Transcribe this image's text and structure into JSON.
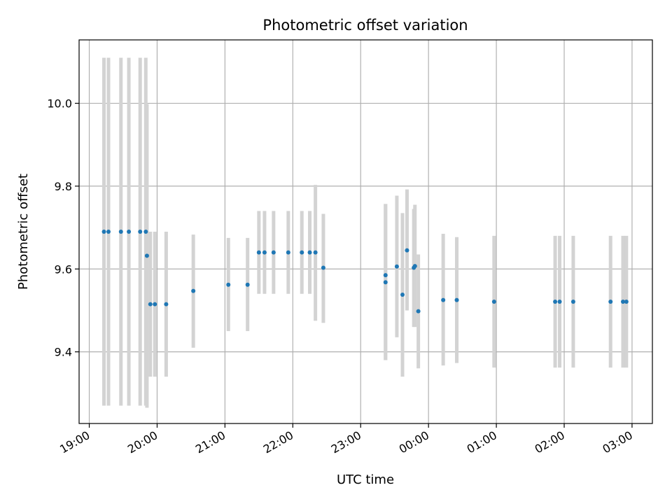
{
  "chart_data": {
    "type": "scatter",
    "title": "Photometric offset variation",
    "xlabel": "UTC time",
    "ylabel": "Photometric offset",
    "x_ticks": [
      "19:00",
      "20:00",
      "21:00",
      "22:00",
      "23:00",
      "00:00",
      "01:00",
      "02:00",
      "03:00"
    ],
    "y_ticks": [
      "9.4",
      "9.6",
      "9.8",
      "10.0"
    ],
    "x_tick_hours": [
      19,
      20,
      21,
      22,
      23,
      24,
      25,
      26,
      27
    ],
    "y_tick_values": [
      9.4,
      9.6,
      9.8,
      10.0
    ],
    "xlim_hours": [
      18.85,
      27.3
    ],
    "ylim": [
      9.227,
      10.153
    ],
    "grid": true,
    "marker_color": "#1f77b4",
    "errorbar_color": "#d3d3d3",
    "points": [
      {
        "x": "19:13",
        "y": 9.69,
        "lo": 9.27,
        "hi": 10.11
      },
      {
        "x": "19:17",
        "y": 9.69,
        "lo": 9.27,
        "hi": 10.11
      },
      {
        "x": "19:28",
        "y": 9.69,
        "lo": 9.27,
        "hi": 10.11
      },
      {
        "x": "19:35",
        "y": 9.69,
        "lo": 9.27,
        "hi": 10.11
      },
      {
        "x": "19:45",
        "y": 9.69,
        "lo": 9.27,
        "hi": 10.11
      },
      {
        "x": "19:50",
        "y": 9.69,
        "lo": 9.27,
        "hi": 10.11
      },
      {
        "x": "19:51",
        "y": 9.632,
        "lo": 9.265,
        "hi": 9.998
      },
      {
        "x": "19:54",
        "y": 9.515,
        "lo": 9.34,
        "hi": 9.69
      },
      {
        "x": "19:58",
        "y": 9.515,
        "lo": 9.34,
        "hi": 9.69
      },
      {
        "x": "20:08",
        "y": 9.515,
        "lo": 9.34,
        "hi": 9.69
      },
      {
        "x": "20:32",
        "y": 9.547,
        "lo": 9.41,
        "hi": 9.683
      },
      {
        "x": "21:03",
        "y": 9.562,
        "lo": 9.45,
        "hi": 9.675
      },
      {
        "x": "21:20",
        "y": 9.562,
        "lo": 9.45,
        "hi": 9.675
      },
      {
        "x": "21:30",
        "y": 9.64,
        "lo": 9.54,
        "hi": 9.74
      },
      {
        "x": "21:35",
        "y": 9.64,
        "lo": 9.54,
        "hi": 9.74
      },
      {
        "x": "21:43",
        "y": 9.64,
        "lo": 9.54,
        "hi": 9.74
      },
      {
        "x": "21:56",
        "y": 9.64,
        "lo": 9.54,
        "hi": 9.74
      },
      {
        "x": "22:08",
        "y": 9.64,
        "lo": 9.54,
        "hi": 9.74
      },
      {
        "x": "22:15",
        "y": 9.64,
        "lo": 9.54,
        "hi": 9.74
      },
      {
        "x": "22:20",
        "y": 9.64,
        "lo": 9.475,
        "hi": 9.803
      },
      {
        "x": "22:27",
        "y": 9.603,
        "lo": 9.47,
        "hi": 9.733
      },
      {
        "x": "23:22",
        "y": 9.585,
        "lo": 9.38,
        "hi": 9.757
      },
      {
        "x": "23:22",
        "y": 9.568,
        "lo": 9.38,
        "hi": 9.757
      },
      {
        "x": "23:32",
        "y": 9.606,
        "lo": 9.435,
        "hi": 9.777
      },
      {
        "x": "23:37",
        "y": 9.538,
        "lo": 9.34,
        "hi": 9.735
      },
      {
        "x": "23:41",
        "y": 9.645,
        "lo": 9.5,
        "hi": 9.792
      },
      {
        "x": "23:47",
        "y": 9.603,
        "lo": 9.46,
        "hi": 9.745
      },
      {
        "x": "23:48",
        "y": 9.607,
        "lo": 9.46,
        "hi": 9.755
      },
      {
        "x": "23:51",
        "y": 9.498,
        "lo": 9.36,
        "hi": 9.635
      },
      {
        "x": "00:13",
        "y": 9.525,
        "lo": 9.367,
        "hi": 9.685
      },
      {
        "x": "00:25",
        "y": 9.525,
        "lo": 9.373,
        "hi": 9.677
      },
      {
        "x": "00:58",
        "y": 9.521,
        "lo": 9.362,
        "hi": 9.68
      },
      {
        "x": "01:52",
        "y": 9.521,
        "lo": 9.362,
        "hi": 9.68
      },
      {
        "x": "01:56",
        "y": 9.521,
        "lo": 9.362,
        "hi": 9.68
      },
      {
        "x": "02:08",
        "y": 9.521,
        "lo": 9.362,
        "hi": 9.68
      },
      {
        "x": "02:41",
        "y": 9.521,
        "lo": 9.362,
        "hi": 9.68
      },
      {
        "x": "02:52",
        "y": 9.521,
        "lo": 9.362,
        "hi": 9.68
      },
      {
        "x": "02:55",
        "y": 9.521,
        "lo": 9.362,
        "hi": 9.68
      }
    ]
  }
}
